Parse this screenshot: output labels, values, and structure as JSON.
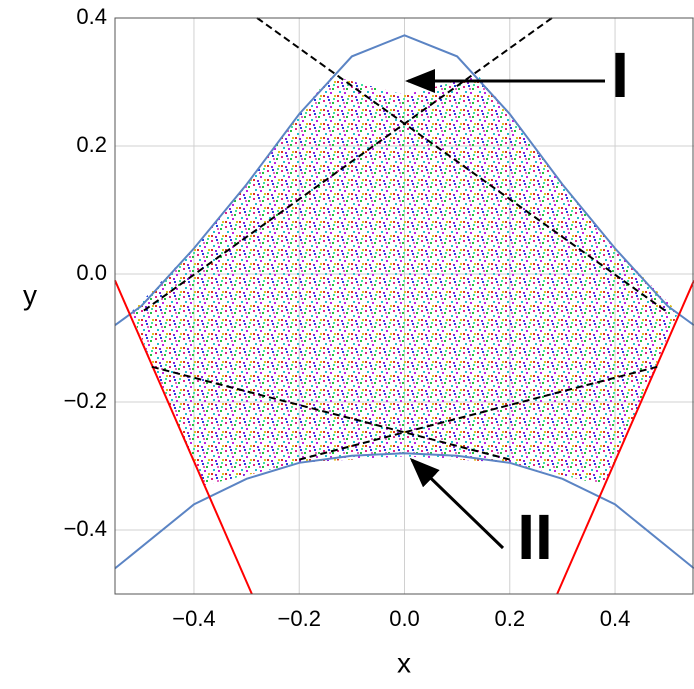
{
  "chart_data": {
    "type": "line",
    "x_label": "x",
    "y_label": "y",
    "xlim": [
      -0.55,
      0.55
    ],
    "ylim": [
      -0.5,
      0.4
    ],
    "xticks": [
      {
        "value": -0.4,
        "label": "−0.4"
      },
      {
        "value": -0.2,
        "label": "−0.2"
      },
      {
        "value": 0,
        "label": "0.0"
      },
      0.2,
      0.4
    ],
    "yticks": [
      {
        "value": -0.4,
        "label": "−0.4"
      },
      {
        "value": -0.2,
        "label": "−0.2"
      },
      {
        "value": 0,
        "label": "0.0"
      },
      0.2,
      0.4
    ],
    "grid": true,
    "region": {
      "x": [
        -0.52,
        -0.4,
        -0.3,
        -0.2,
        -0.14,
        0,
        0.14,
        0.2,
        0.3,
        0.4,
        0.52,
        0.38,
        0.2,
        0,
        -0.2,
        -0.38
      ],
      "y": [
        -0.06,
        0.04,
        0.14,
        0.25,
        0.31,
        0.28,
        0.31,
        0.25,
        0.14,
        0.04,
        -0.06,
        -0.33,
        -0.295,
        -0.285,
        -0.295,
        -0.33
      ]
    },
    "series": [
      {
        "color": "#5b84c4",
        "dashed": false,
        "x": [
          -0.55,
          -0.5,
          -0.4,
          -0.3,
          -0.2,
          -0.1,
          0,
          0.1,
          0.2,
          0.3,
          0.4,
          0.5,
          0.55
        ],
        "y": [
          -0.08,
          -0.05,
          0.04,
          0.14,
          0.25,
          0.34,
          0.373,
          0.34,
          0.25,
          0.14,
          0.04,
          -0.05,
          -0.08
        ]
      },
      {
        "color": "#5b84c4",
        "dashed": false,
        "x": [
          -0.55,
          -0.4,
          -0.3,
          -0.2,
          -0.1,
          0,
          0.1,
          0.2,
          0.3,
          0.4,
          0.55
        ],
        "y": [
          -0.46,
          -0.36,
          -0.32,
          -0.295,
          -0.284,
          -0.28,
          -0.284,
          -0.295,
          -0.32,
          -0.36,
          -0.46
        ]
      },
      {
        "color": "#ff0000",
        "dashed": false,
        "x": [
          -0.55,
          -0.29
        ],
        "y": [
          -0.01,
          -0.5
        ]
      },
      {
        "color": "#ff0000",
        "dashed": false,
        "x": [
          0.29,
          0.55
        ],
        "y": [
          -0.5,
          -0.01
        ]
      },
      {
        "color": "#000000",
        "dashed": true,
        "x": [
          -0.28,
          0.5
        ],
        "y": [
          0.4,
          -0.06
        ]
      },
      {
        "color": "#000000",
        "dashed": true,
        "x": [
          0.28,
          -0.5
        ],
        "y": [
          0.4,
          -0.06
        ]
      },
      {
        "color": "#000000",
        "dashed": true,
        "x": [
          -0.48,
          0.2
        ],
        "y": [
          -0.145,
          -0.29
        ]
      },
      {
        "color": "#000000",
        "dashed": true,
        "x": [
          0.48,
          -0.2
        ],
        "y": [
          -0.145,
          -0.29
        ]
      }
    ],
    "annotations": [
      "I",
      "II"
    ]
  }
}
